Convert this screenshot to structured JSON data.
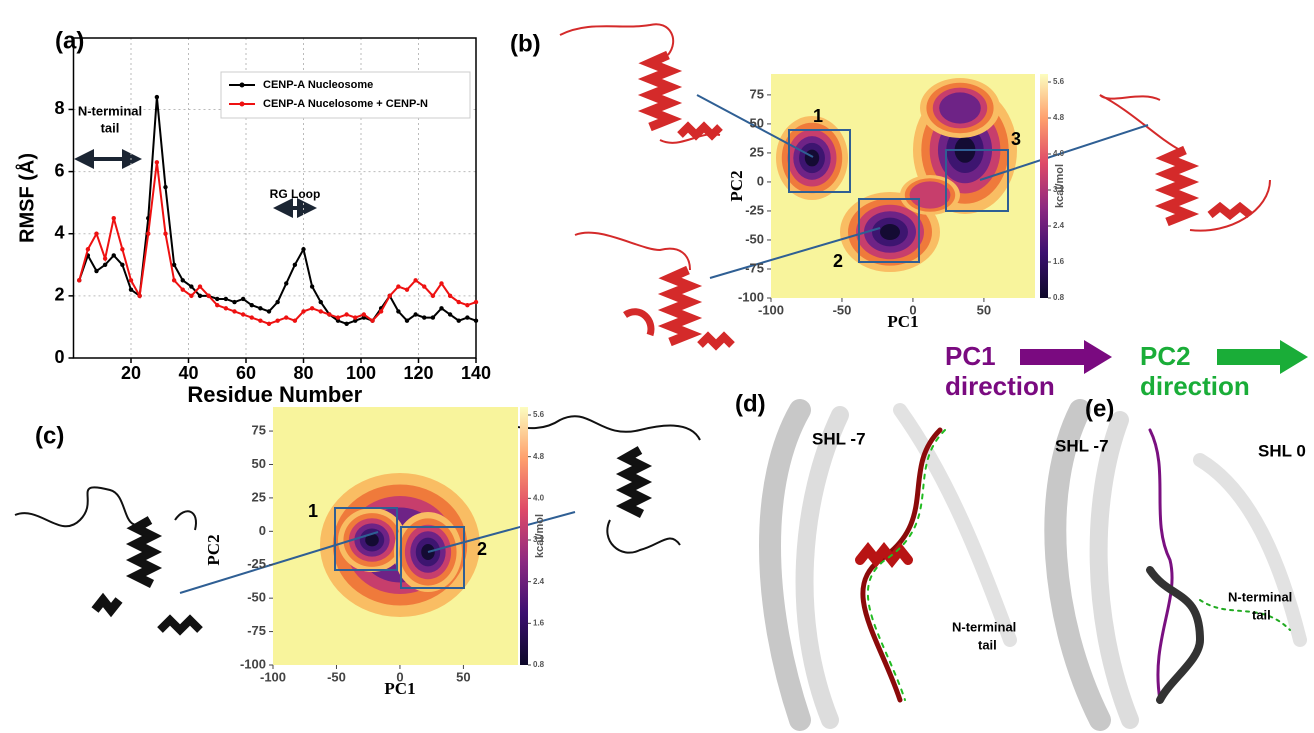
{
  "panel_labels": [
    "(a)",
    "(b)",
    "(c)",
    "(d)",
    "(e)"
  ],
  "chart_data": [
    {
      "type": "line",
      "xlabel": "Residue Number",
      "ylabel": "RMSF (Å)",
      "x": [
        2,
        5,
        8,
        11,
        14,
        17,
        20,
        23,
        26,
        29,
        32,
        35,
        38,
        41,
        44,
        47,
        50,
        53,
        56,
        59,
        62,
        65,
        68,
        71,
        74,
        77,
        80,
        83,
        86,
        89,
        92,
        95,
        98,
        101,
        104,
        107,
        110,
        113,
        116,
        119,
        122,
        125,
        128,
        131,
        134,
        137,
        140
      ],
      "series": [
        {
          "name": "CENP-A Nucleosome",
          "color": "#000000",
          "values": [
            2.5,
            3.3,
            2.8,
            3.0,
            3.3,
            3.0,
            2.2,
            2.0,
            4.5,
            8.4,
            5.5,
            3.0,
            2.5,
            2.3,
            2.0,
            2.0,
            1.9,
            1.9,
            1.8,
            1.9,
            1.7,
            1.6,
            1.5,
            1.8,
            2.4,
            3.0,
            3.5,
            2.3,
            1.8,
            1.4,
            1.2,
            1.1,
            1.2,
            1.3,
            1.2,
            1.6,
            2.0,
            1.5,
            1.2,
            1.4,
            1.3,
            1.3,
            1.6,
            1.4,
            1.2,
            1.3,
            1.2
          ]
        },
        {
          "name": "CENP-A Nucelosome + CENP-N",
          "color": "#ee1111",
          "values": [
            2.5,
            3.5,
            4.0,
            3.2,
            4.5,
            3.5,
            2.5,
            2.0,
            4.0,
            6.3,
            4.0,
            2.5,
            2.2,
            2.0,
            2.3,
            2.0,
            1.7,
            1.6,
            1.5,
            1.4,
            1.3,
            1.2,
            1.1,
            1.2,
            1.3,
            1.2,
            1.5,
            1.6,
            1.5,
            1.4,
            1.3,
            1.4,
            1.3,
            1.4,
            1.2,
            1.5,
            2.0,
            2.3,
            2.2,
            2.5,
            2.3,
            2.0,
            2.4,
            2.0,
            1.8,
            1.7,
            1.8
          ]
        }
      ],
      "xlim": [
        0,
        140
      ],
      "ylim": [
        0,
        10.3
      ],
      "xticks": [
        20,
        40,
        60,
        80,
        100,
        120,
        140
      ],
      "yticks": [
        0,
        2,
        4,
        6,
        8
      ],
      "grid": true,
      "legend": "upper right",
      "annotations": [
        "N-terminal",
        "tail",
        "RG Loop"
      ]
    },
    {
      "type": "contour",
      "xlabel": "PC1",
      "ylabel": "PC2",
      "xlim": [
        -100,
        86
      ],
      "ylim": [
        -100,
        93
      ],
      "xticks": [
        -100,
        -50,
        0,
        50
      ],
      "yticks": [
        -100,
        -75,
        -50,
        -25,
        0,
        25,
        50,
        75
      ],
      "colorbar": {
        "label": "kcal/mol",
        "ticks": [
          0.8,
          1.6,
          2.4,
          3.2,
          {
            "value": 4,
            "label": "4.0"
          },
          4.8,
          5.6
        ]
      },
      "regions": [
        "1",
        "2",
        "3"
      ]
    },
    {
      "type": "contour",
      "xlabel": "PC1",
      "ylabel": "PC2",
      "xlim": [
        -100,
        93
      ],
      "ylim": [
        -100,
        93
      ],
      "xticks": [
        -100,
        -50,
        0,
        50
      ],
      "yticks": [
        -100,
        -75,
        -50,
        -25,
        0,
        25,
        50,
        75
      ],
      "colorbar": {
        "label": "kcal/mol",
        "ticks": [
          0.8,
          1.6,
          2.4,
          3.2,
          {
            "value": 4,
            "label": "4.0"
          },
          4.8,
          5.6
        ]
      },
      "regions": [
        "1",
        "2"
      ]
    }
  ],
  "direction_keys": [
    {
      "line1": "PC1",
      "line2": "direction",
      "color": "#7a0a80"
    },
    {
      "line1": "PC2",
      "line2": "direction",
      "color": "#1aad38"
    }
  ],
  "panel_d": {
    "labels": [
      "SHL -7",
      "N-terminal",
      "tail"
    ]
  },
  "panel_e": {
    "labels": [
      "SHL -7",
      "SHL 0",
      "N-terminal",
      "tail"
    ]
  }
}
